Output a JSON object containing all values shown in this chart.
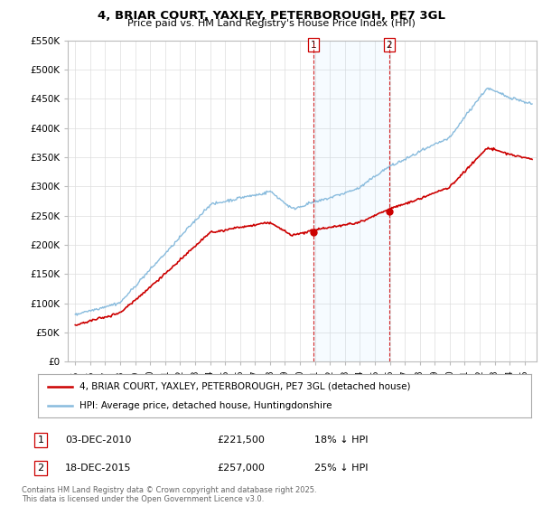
{
  "title": "4, BRIAR COURT, YAXLEY, PETERBOROUGH, PE7 3GL",
  "subtitle": "Price paid vs. HM Land Registry's House Price Index (HPI)",
  "ylabel_ticks": [
    "£0",
    "£50K",
    "£100K",
    "£150K",
    "£200K",
    "£250K",
    "£300K",
    "£350K",
    "£400K",
    "£450K",
    "£500K",
    "£550K"
  ],
  "ytick_vals": [
    0,
    50000,
    100000,
    150000,
    200000,
    250000,
    300000,
    350000,
    400000,
    450000,
    500000,
    550000
  ],
  "ylim": [
    0,
    550000
  ],
  "xlim_start": 1994.5,
  "xlim_end": 2025.8,
  "line1_label": "4, BRIAR COURT, YAXLEY, PETERBOROUGH, PE7 3GL (detached house)",
  "line2_label": "HPI: Average price, detached house, Huntingdonshire",
  "line1_color": "#cc0000",
  "line2_color": "#88bbdd",
  "vline_color": "#cc0000",
  "marker1_x": 2010.92,
  "marker2_x": 2015.96,
  "marker1_y": 221500,
  "marker2_y": 257000,
  "marker1_label": "1",
  "marker2_label": "2",
  "table_rows": [
    {
      "num": "1",
      "date": "03-DEC-2010",
      "price": "£221,500",
      "pct": "18% ↓ HPI"
    },
    {
      "num": "2",
      "date": "18-DEC-2015",
      "price": "£257,000",
      "pct": "25% ↓ HPI"
    }
  ],
  "footer": "Contains HM Land Registry data © Crown copyright and database right 2025.\nThis data is licensed under the Open Government Licence v3.0.",
  "background_color": "#ffffff",
  "grid_color": "#dddddd"
}
